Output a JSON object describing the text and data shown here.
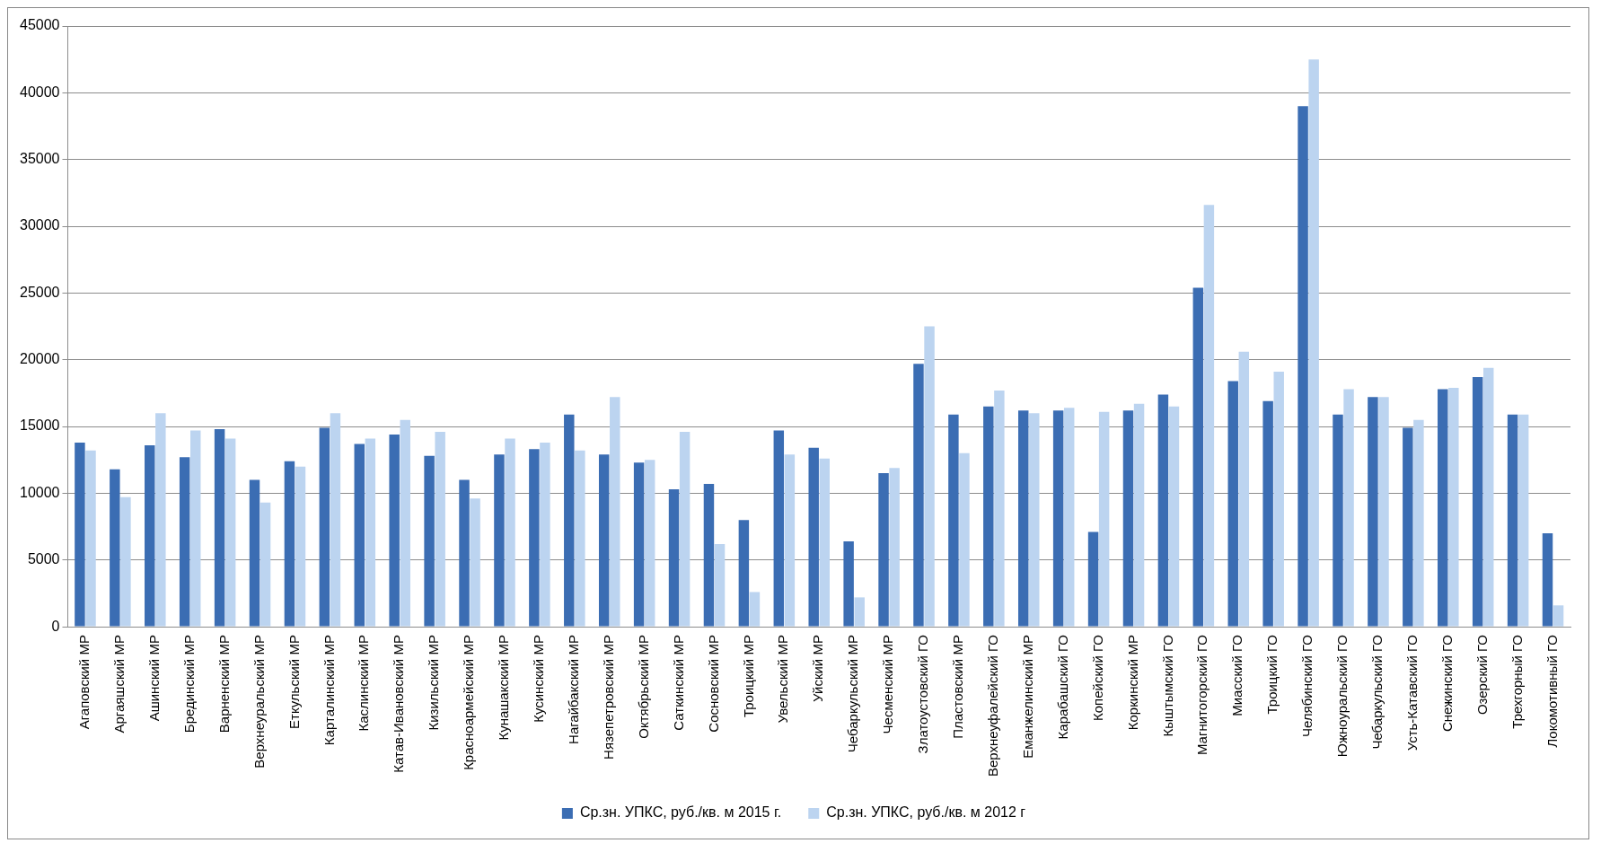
{
  "chart_data": {
    "type": "bar",
    "categories": [
      "Агаповский МР",
      "Аргаяшский МР",
      "Ашинский МР",
      "Брединский МР",
      "Варненский МР",
      "Верхнеуральский МР",
      "Еткульский МР",
      "Карталинский МР",
      "Каслинский МР",
      "Катав-Ивановский МР",
      "Кизильский МР",
      "Красноармейский МР",
      "Кунашакский МР",
      "Кусинский МР",
      "Нагайбакский МР",
      "Нязепетровский МР",
      "Октябрьский МР",
      "Саткинский МР",
      "Сосновский МР",
      "Троицкий МР",
      "Увельский МР",
      "Уйский МР",
      "Чебаркульский МР",
      "Чесменский МР",
      "Златоустовский ГО",
      "Пластовский МР",
      "Верхнеуфалейский ГО",
      "Еманжелинский МР",
      "Карабашский ГО",
      "Копейский ГО",
      "Коркинский МР",
      "Кыштымский ГО",
      "Магнитогорский ГО",
      "Миасский ГО",
      "Троицкий ГО",
      "Челябинский ГО",
      "Южноуральский ГО",
      "Чебаркульский ГО",
      "Усть-Катавский ГО",
      "Снежинский ГО",
      "Озерский ГО",
      "Трехгорный ГО",
      "Локомотивный ГО"
    ],
    "series": [
      {
        "name": "Ср.зн. УПКС, руб./кв. м 2015 г.",
        "color": "#3b6db3",
        "values": [
          13800,
          11800,
          13600,
          12700,
          14800,
          11000,
          12400,
          14900,
          13700,
          14400,
          12800,
          11000,
          12900,
          13300,
          15900,
          12900,
          12300,
          10300,
          10700,
          8000,
          14700,
          13400,
          6400,
          11500,
          19700,
          15900,
          16500,
          16200,
          16200,
          7100,
          16200,
          17400,
          25400,
          18400,
          16900,
          39000,
          15900,
          17200,
          14900,
          17800,
          18700,
          15900,
          7000
        ]
      },
      {
        "name": "Ср.зн. УПКС, руб./кв. м 2012 г",
        "color": "#bcd4f0",
        "values": [
          13200,
          9700,
          16000,
          14700,
          14100,
          9300,
          12000,
          16000,
          14100,
          15500,
          14600,
          9600,
          14100,
          13800,
          13200,
          17200,
          12500,
          14600,
          6200,
          2600,
          12900,
          12600,
          2200,
          11900,
          22500,
          13000,
          17700,
          16000,
          16400,
          16100,
          16700,
          16500,
          31600,
          20600,
          19100,
          42500,
          17800,
          17200,
          15500,
          17900,
          19400,
          15900,
          1600
        ]
      }
    ],
    "ylim": [
      0,
      45000
    ],
    "yticks": [
      0,
      5000,
      10000,
      15000,
      20000,
      25000,
      30000,
      35000,
      40000,
      45000
    ],
    "grid": "y",
    "legend": "bottom"
  }
}
